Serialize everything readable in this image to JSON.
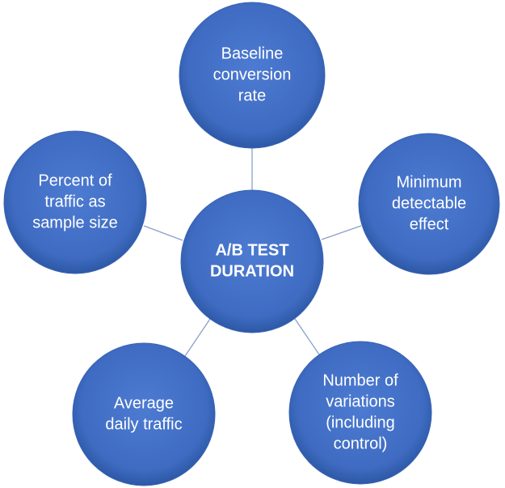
{
  "center": {
    "lines": [
      "A/B TEST",
      "DURATION"
    ]
  },
  "nodes": [
    {
      "lines": [
        "Baseline",
        "conversion",
        "rate"
      ]
    },
    {
      "lines": [
        "Minimum",
        "detectable",
        "effect"
      ]
    },
    {
      "lines": [
        "Number of",
        "variations",
        "(including",
        "control)"
      ]
    },
    {
      "lines": [
        "Average",
        "daily traffic"
      ]
    },
    {
      "lines": [
        "Percent of",
        "traffic as",
        "sample size"
      ]
    }
  ]
}
